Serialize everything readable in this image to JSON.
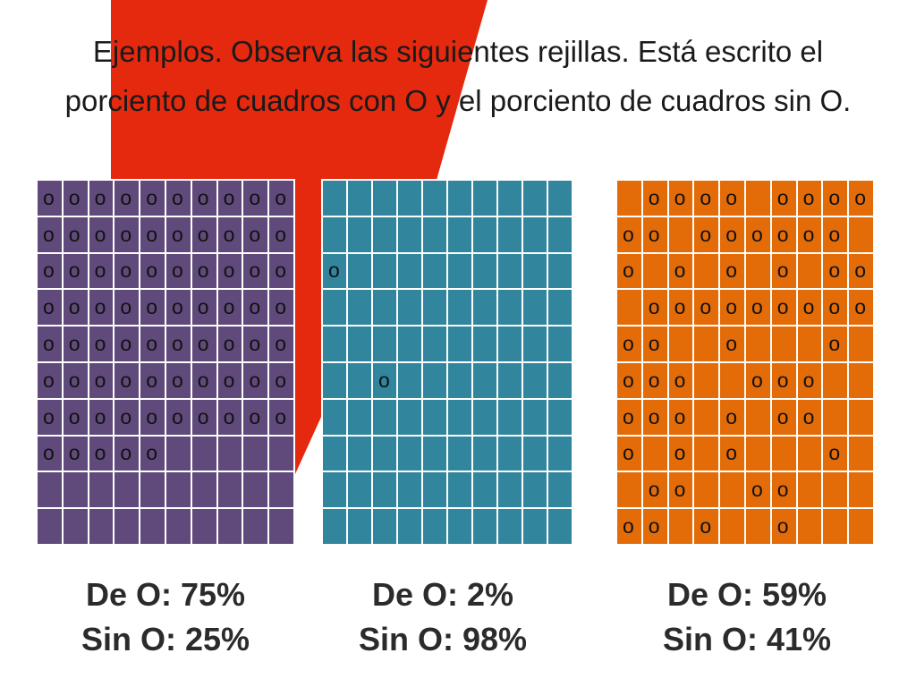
{
  "title": "Ejemplos. Observa las siguientes rejillas. Está escrito el porciento de cuadros con O y el porciento de cuadros sin O.",
  "colors": {
    "background": "#ffffff",
    "red_stripe": "#e5290f",
    "purple": "#604a7b",
    "teal": "#31859c",
    "orange": "#e36c09"
  },
  "mark": "o",
  "grids": [
    {
      "name": "purple",
      "rows": [
        "oooooooooo",
        "oooooooooo",
        "oooooooooo",
        "oooooooooo",
        "oooooooooo",
        "oooooooooo",
        "oooooooooo",
        "ooooo.....",
        "..........",
        ".........."
      ],
      "de_o": "De O: 75%",
      "sin_o": "Sin O: 25%"
    },
    {
      "name": "teal",
      "rows": [
        "..........",
        "..........",
        "o.........",
        "..........",
        "..........",
        "..o.......",
        "..........",
        "..........",
        "..........",
        ".........."
      ],
      "de_o": "De O: 2%",
      "sin_o": "Sin O: 98%"
    },
    {
      "name": "orange",
      "rows": [
        ".oooo.oooo",
        "oo.oooooo.",
        "o.o.o.o.oo",
        ".ooooooooo",
        "oo..o...o.",
        "ooo..ooo..",
        "ooo.o.oo..",
        "o.o.o...o.",
        ".oo..oo...",
        "oo.o..o..."
      ],
      "de_o": "De O: 59%",
      "sin_o": "Sin O: 41%"
    }
  ]
}
